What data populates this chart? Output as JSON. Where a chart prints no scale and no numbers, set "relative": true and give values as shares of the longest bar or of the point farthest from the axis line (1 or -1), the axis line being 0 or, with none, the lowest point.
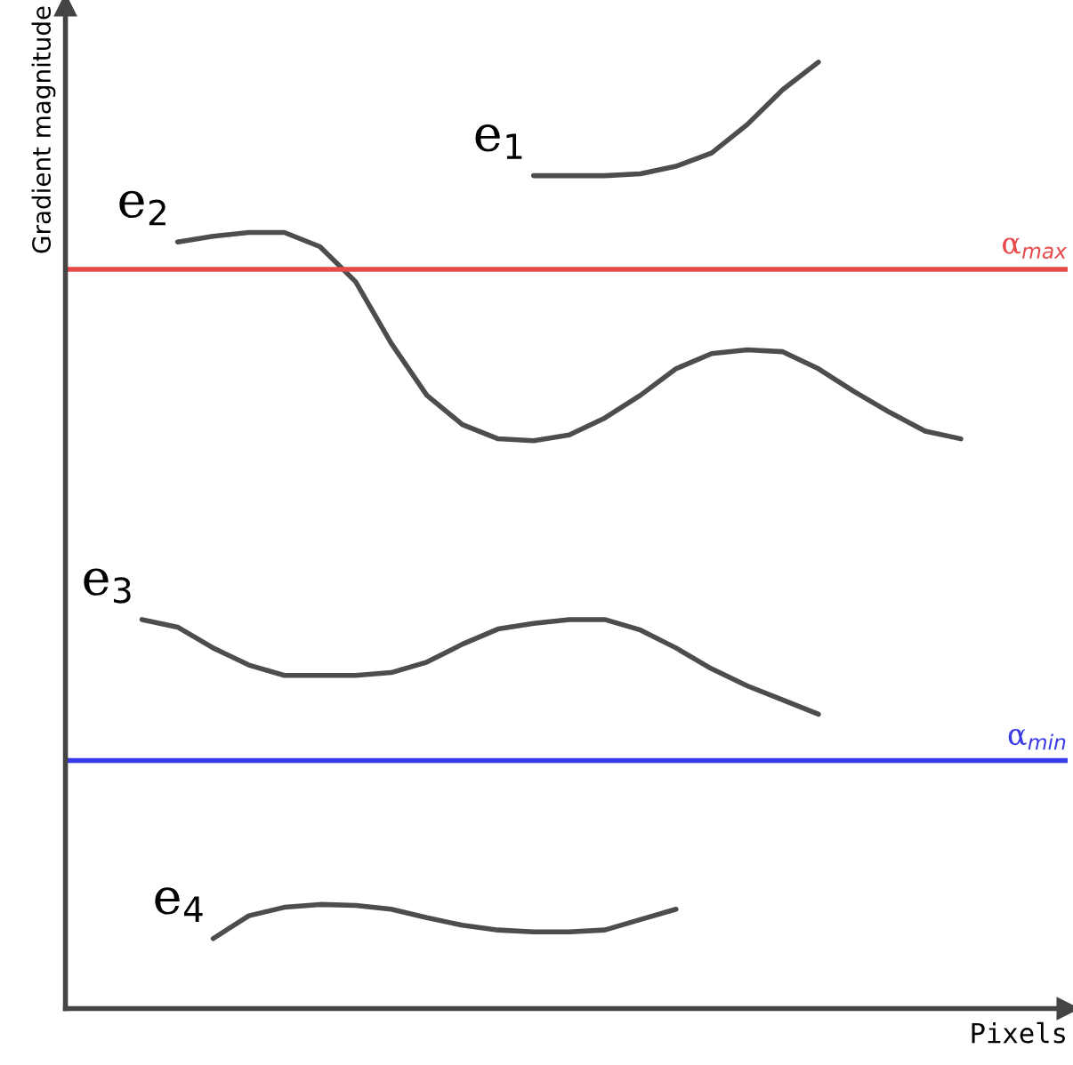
{
  "chart_data": {
    "type": "line",
    "relative": true,
    "xlabel": "Pixels",
    "ylabel": "Gradient magnitude",
    "legend": false,
    "grid": false,
    "marker": "none",
    "line_style": "solid",
    "categories": [
      null,
      null,
      null,
      null,
      null,
      null,
      null,
      null,
      null,
      null,
      null,
      null,
      null,
      null,
      null,
      null,
      null,
      null,
      null,
      null,
      null,
      null,
      null,
      null,
      null,
      null,
      null,
      null,
      null
    ],
    "series": [
      {
        "name": "e$_{1}$",
        "color": "#4d4d4d",
        "values": [
          null,
          null,
          null,
          null,
          null,
          null,
          null,
          null,
          null,
          null,
          null,
          null,
          null,
          0.88,
          0.88,
          0.88,
          0.882,
          0.89,
          0.904,
          0.934,
          0.971,
          1,
          null,
          null,
          null,
          null,
          null,
          null,
          null
        ]
      },
      {
        "name": "e$_{2}$",
        "color": "#4d4d4d",
        "values": [
          null,
          null,
          null,
          0.81,
          0.816,
          0.82,
          0.82,
          0.805,
          0.768,
          0.703,
          0.648,
          0.617,
          0.602,
          0.6,
          0.606,
          0.624,
          0.648,
          0.676,
          0.692,
          0.696,
          0.694,
          0.676,
          0.652,
          0.63,
          0.61,
          0.602,
          null,
          null,
          null
        ]
      },
      {
        "name": "e$_{3}$",
        "color": "#4d4d4d",
        "values": [
          null,
          null,
          0.411,
          0.403,
          0.381,
          0.363,
          0.352,
          0.352,
          0.352,
          0.355,
          0.366,
          0.385,
          0.401,
          0.407,
          0.411,
          0.411,
          0.4,
          0.381,
          0.359,
          0.341,
          0.326,
          0.311,
          null,
          null,
          null,
          null,
          null,
          null,
          null
        ]
      },
      {
        "name": "e$_{4}$",
        "color": "#4d4d4d",
        "values": [
          null,
          null,
          null,
          null,
          0.074,
          0.098,
          0.107,
          0.11,
          0.109,
          0.105,
          0.096,
          0.088,
          0.083,
          0.081,
          0.081,
          0.083,
          0.094,
          0.105,
          null,
          null,
          null,
          null,
          null,
          null,
          null,
          null,
          null,
          null,
          null
        ]
      }
    ],
    "ref_lines": [
      {
        "axis": "y",
        "value": 0.781,
        "label": "α$_{max}$",
        "color": "#e84a4a"
      },
      {
        "axis": "y",
        "value": 0.262,
        "label": "α$_{min}$",
        "color": "#3a3ae6"
      }
    ]
  }
}
